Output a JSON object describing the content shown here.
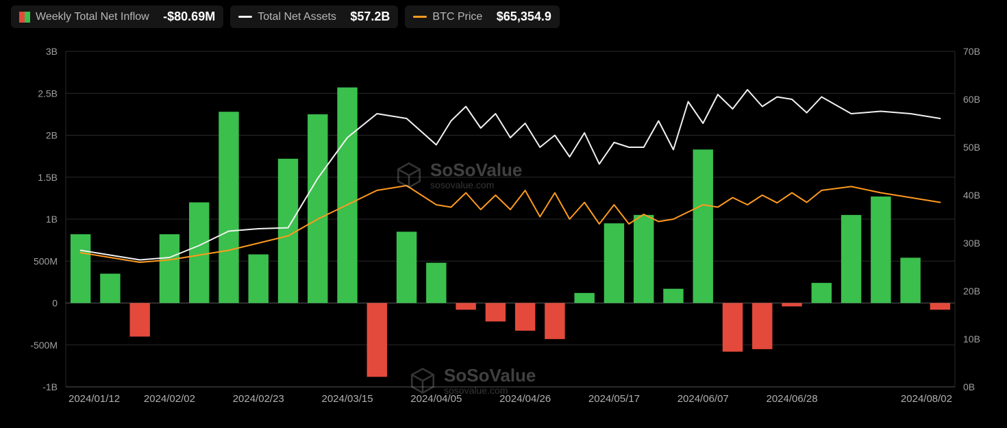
{
  "legend": {
    "inflow": {
      "label": "Weekly Total Net Inflow",
      "value": "-$80.69M",
      "pos_color": "#3bbf4d",
      "neg_color": "#e34a3c"
    },
    "assets": {
      "label": "Total Net Assets",
      "value": "$57.2B",
      "line_color": "#f2f2f2"
    },
    "btc": {
      "label": "BTC Price",
      "value": "$65,354.9",
      "line_color": "#ff9a1f"
    }
  },
  "chart": {
    "type": "combo-bar-line",
    "background_color": "#000000",
    "grid_color": "#2a2a2a",
    "axis_line_color": "#555555",
    "left_axis": {
      "min": -1,
      "max": 3,
      "unit": "B",
      "ticks": [
        {
          "v": -1,
          "label": "-1B"
        },
        {
          "v": -0.5,
          "label": "-500M"
        },
        {
          "v": 0,
          "label": "0"
        },
        {
          "v": 0.5,
          "label": "500M"
        },
        {
          "v": 1,
          "label": "1B"
        },
        {
          "v": 1.5,
          "label": "1.5B"
        },
        {
          "v": 2,
          "label": "2B"
        },
        {
          "v": 2.5,
          "label": "2.5B"
        },
        {
          "v": 3,
          "label": "3B"
        }
      ]
    },
    "right_axis": {
      "min": 0,
      "max": 70,
      "unit": "B",
      "ticks": [
        {
          "v": 0,
          "label": "0B"
        },
        {
          "v": 10,
          "label": "10B"
        },
        {
          "v": 20,
          "label": "20B"
        },
        {
          "v": 30,
          "label": "30B"
        },
        {
          "v": 40,
          "label": "40B"
        },
        {
          "v": 50,
          "label": "50B"
        },
        {
          "v": 60,
          "label": "60B"
        },
        {
          "v": 70,
          "label": "70B"
        }
      ]
    },
    "x_labels": [
      "2024/01/12",
      "2024/02/02",
      "2024/02/23",
      "2024/03/15",
      "2024/04/05",
      "2024/04/26",
      "2024/05/17",
      "2024/06/07",
      "2024/06/28",
      "2024/08/02"
    ],
    "x_label_indices": [
      0,
      3,
      6,
      9,
      12,
      15,
      18,
      21,
      24,
      29
    ],
    "bar_colors": {
      "positive": "#3bbf4d",
      "negative": "#e34a3c"
    },
    "line_styles": {
      "assets": {
        "color": "#f2f2f2",
        "width": 2
      },
      "btc": {
        "color": "#ff9a1f",
        "width": 2
      }
    },
    "bar_width_ratio": 0.68,
    "series": {
      "inflow_B": [
        0.82,
        0.35,
        -0.4,
        0.82,
        1.2,
        2.28,
        0.58,
        1.72,
        2.25,
        2.57,
        -0.88,
        0.85,
        0.48,
        -0.08,
        -0.22,
        -0.33,
        -0.43,
        0.12,
        0.95,
        1.05,
        0.17,
        1.83,
        -0.58,
        -0.55,
        -0.04,
        0.24,
        1.05,
        1.27,
        0.54,
        -0.08
      ],
      "assets_B": [
        28.5,
        27.5,
        26.5,
        27.0,
        29.5,
        32.5,
        33.0,
        33.2,
        43.5,
        52.0,
        57.0,
        56.0,
        50.5,
        58.5,
        57.0,
        55.0,
        52.5,
        53.0,
        51.0,
        50.0,
        49.5,
        55.0,
        58.0,
        58.5,
        60.0,
        60.5,
        57.0,
        57.5,
        57.0,
        56.0
      ],
      "assets_half_B": [
        55.5,
        54.0,
        52.0,
        50.0,
        48.0,
        46.5,
        50.0,
        55.5,
        59.5,
        61.0,
        62.0,
        60.5,
        57.2
      ],
      "btc_B": [
        28.0,
        27.0,
        26.0,
        26.5,
        27.5,
        28.5,
        30.0,
        31.5,
        35.0,
        38.0,
        41.0,
        42.0,
        38.0,
        40.5,
        40.0,
        41.0,
        40.5,
        38.5,
        38.0,
        36.0,
        35.0,
        38.0,
        39.5,
        40.0,
        40.5,
        41.0,
        41.8,
        40.5,
        39.5,
        38.5
      ],
      "btc_half_B": [
        37.5,
        37.0,
        37.0,
        35.5,
        35.0,
        34.0,
        34.0,
        34.5,
        36.5,
        37.5,
        38.0,
        38.4,
        38.5
      ]
    }
  },
  "watermark": {
    "main": "SoSoValue",
    "sub": "sosovalue.com"
  }
}
